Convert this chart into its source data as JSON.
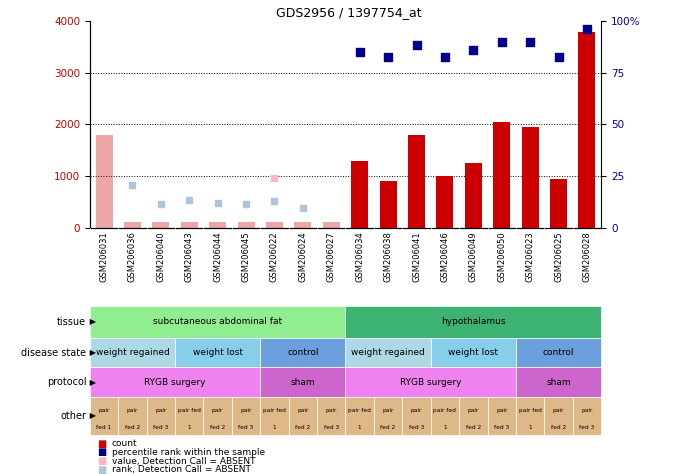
{
  "title": "GDS2956 / 1397754_at",
  "samples": [
    "GSM206031",
    "GSM206036",
    "GSM206040",
    "GSM206043",
    "GSM206044",
    "GSM206045",
    "GSM206022",
    "GSM206024",
    "GSM206027",
    "GSM206034",
    "GSM206038",
    "GSM206041",
    "GSM206046",
    "GSM206049",
    "GSM206050",
    "GSM206023",
    "GSM206025",
    "GSM206028"
  ],
  "count_values": [
    1800,
    100,
    100,
    100,
    100,
    100,
    100,
    100,
    100,
    1300,
    900,
    1800,
    1000,
    1250,
    2050,
    1950,
    950,
    3800
  ],
  "count_absent": [
    true,
    true,
    true,
    true,
    true,
    true,
    true,
    true,
    true,
    false,
    false,
    false,
    false,
    false,
    false,
    false,
    false,
    false
  ],
  "percentile_values": [
    null,
    null,
    null,
    null,
    null,
    null,
    null,
    null,
    null,
    3400,
    3300,
    3550,
    3300,
    3450,
    3600,
    3600,
    3300,
    3850
  ],
  "rank_absent_values": [
    null,
    820,
    450,
    530,
    480,
    460,
    520,
    380,
    null,
    null,
    null,
    null,
    null,
    null,
    null,
    null,
    null,
    null
  ],
  "value_absent_values": [
    null,
    null,
    null,
    null,
    null,
    null,
    960,
    null,
    null,
    null,
    null,
    null,
    null,
    null,
    null,
    null,
    null,
    null
  ],
  "ylim_left": [
    0,
    4000
  ],
  "ylim_right": [
    0,
    100
  ],
  "yticks_left": [
    0,
    1000,
    2000,
    3000,
    4000
  ],
  "yticks_right": [
    0,
    25,
    50,
    75,
    100
  ],
  "yticklabels_right": [
    "0",
    "25",
    "50",
    "75",
    "100%"
  ],
  "grid_values": [
    1000,
    2000,
    3000
  ],
  "tissue_row": {
    "groups": [
      {
        "label": "subcutaneous abdominal fat",
        "start": 0,
        "end": 9,
        "color": "#90ee90"
      },
      {
        "label": "hypothalamus",
        "start": 9,
        "end": 18,
        "color": "#3cb371"
      }
    ]
  },
  "disease_state_row": {
    "groups": [
      {
        "label": "weight regained",
        "start": 0,
        "end": 3,
        "color": "#add8e6"
      },
      {
        "label": "weight lost",
        "start": 3,
        "end": 6,
        "color": "#87ceeb"
      },
      {
        "label": "control",
        "start": 6,
        "end": 9,
        "color": "#6ca0dc"
      },
      {
        "label": "weight regained",
        "start": 9,
        "end": 12,
        "color": "#add8e6"
      },
      {
        "label": "weight lost",
        "start": 12,
        "end": 15,
        "color": "#87ceeb"
      },
      {
        "label": "control",
        "start": 15,
        "end": 18,
        "color": "#6ca0dc"
      }
    ]
  },
  "protocol_row": {
    "groups": [
      {
        "label": "RYGB surgery",
        "start": 0,
        "end": 6,
        "color": "#ee82ee"
      },
      {
        "label": "sham",
        "start": 6,
        "end": 9,
        "color": "#cc66cc"
      },
      {
        "label": "RYGB surgery",
        "start": 9,
        "end": 15,
        "color": "#ee82ee"
      },
      {
        "label": "sham",
        "start": 15,
        "end": 18,
        "color": "#cc66cc"
      }
    ]
  },
  "other_labels": [
    "pair\nfed 1",
    "pair\nfed 2",
    "pair\nfed 3",
    "pair fed\n1",
    "pair\nfed 2",
    "pair\nfed 3",
    "pair fed\n1",
    "pair\nfed 2",
    "pair\nfed 3",
    "pair fed\n1",
    "pair\nfed 2",
    "pair\nfed 3",
    "pair fed\n1",
    "pair\nfed 2",
    "pair\nfed 3",
    "pair fed\n1",
    "pair\nfed 2",
    "pair\nfed 3"
  ],
  "other_color": "#deb887",
  "row_labels": [
    "tissue",
    "disease state",
    "protocol",
    "other"
  ],
  "legend_items": [
    {
      "color": "#cc0000",
      "label": "count"
    },
    {
      "color": "#00008b",
      "label": "percentile rank within the sample"
    },
    {
      "color": "#ffb6c1",
      "label": "value, Detection Call = ABSENT"
    },
    {
      "color": "#b0c4de",
      "label": "rank, Detection Call = ABSENT"
    }
  ],
  "bar_color": "#cc0000",
  "percentile_color": "#00008b",
  "rank_absent_color": "#b0c4de",
  "value_absent_color": "#ffb6c1",
  "xlabels_bg": "#d3d3d3",
  "background_color": "#ffffff",
  "left_axis_color": "#cc0000",
  "right_axis_color": "#00008b"
}
